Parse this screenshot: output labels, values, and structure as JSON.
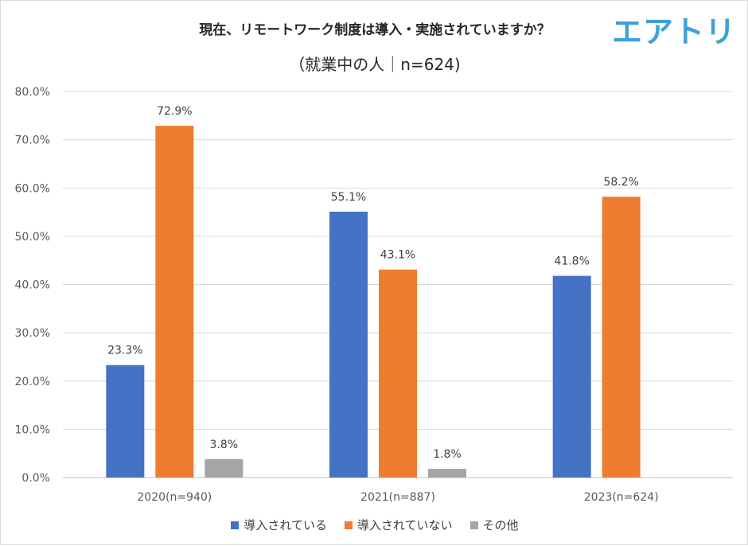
{
  "logo": "エアトリ",
  "chart_data": {
    "type": "bar",
    "title": "現在、リモートワーク制度は導入・実施されていますか？",
    "subtitle": "（就業中の人｜n=624)",
    "categories": [
      "2020(n=940)",
      "2021(n=887)",
      "2023(n=624)"
    ],
    "series": [
      {
        "name": "導入されている",
        "color": "#4472c4",
        "values": [
          23.3,
          55.1,
          41.8
        ],
        "labels": [
          "23.3%",
          "55.1%",
          "41.8%"
        ]
      },
      {
        "name": "導入されていない",
        "color": "#ed7d31",
        "values": [
          72.9,
          43.1,
          58.2
        ],
        "labels": [
          "72.9%",
          "43.1%",
          "58.2%"
        ]
      },
      {
        "name": "その他",
        "color": "#a5a5a5",
        "values": [
          3.8,
          1.8,
          null
        ],
        "labels": [
          "3.8%",
          "1.8%",
          ""
        ]
      }
    ],
    "ylim": [
      0,
      80
    ],
    "yticks": [
      "0.0%",
      "10.0%",
      "20.0%",
      "30.0%",
      "40.0%",
      "50.0%",
      "60.0%",
      "70.0%",
      "80.0%"
    ],
    "grid": true,
    "legend_position": "bottom"
  }
}
